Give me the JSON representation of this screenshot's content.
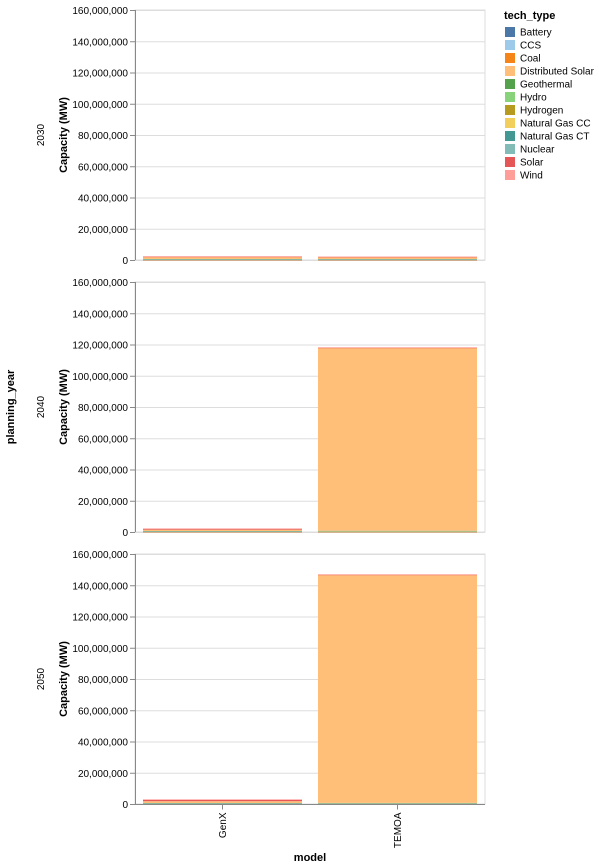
{
  "chart_data": {
    "type": "bar",
    "stacked": true,
    "facet_title": "planning_year",
    "x_title": "model",
    "y_title": "Capacity (MW)",
    "legend_title": "tech_type",
    "legend_position": "right",
    "grid": true,
    "ylim": [
      0,
      160000000
    ],
    "y_ticks": [
      "0",
      "20,000,000",
      "40,000,000",
      "60,000,000",
      "80,000,000",
      "100,000,000",
      "120,000,000",
      "140,000,000",
      "160,000,000"
    ],
    "y_tick_values": [
      0,
      20000000,
      40000000,
      60000000,
      80000000,
      100000000,
      120000000,
      140000000,
      160000000
    ],
    "categories": [
      "GenX",
      "TEMOA"
    ],
    "tech_types": [
      {
        "name": "Battery",
        "color": "#4c78a8"
      },
      {
        "name": "CCS",
        "color": "#9ecae9"
      },
      {
        "name": "Coal",
        "color": "#f58518"
      },
      {
        "name": "Distributed Solar",
        "color": "#ffbf79"
      },
      {
        "name": "Geothermal",
        "color": "#54a24b"
      },
      {
        "name": "Hydro",
        "color": "#88d27a"
      },
      {
        "name": "Hydrogen",
        "color": "#b79a20"
      },
      {
        "name": "Natural Gas CC",
        "color": "#f2cf5b"
      },
      {
        "name": "Natural Gas CT",
        "color": "#439894"
      },
      {
        "name": "Nuclear",
        "color": "#83bcb6"
      },
      {
        "name": "Solar",
        "color": "#e45756"
      },
      {
        "name": "Wind",
        "color": "#ff9d98"
      }
    ],
    "facets": [
      {
        "year": "2030",
        "bars": [
          {
            "model": "GenX",
            "segments": [
              {
                "tech": "Battery",
                "value": 50000
              },
              {
                "tech": "Coal",
                "value": 100000
              },
              {
                "tech": "Natural Gas CC",
                "value": 250000
              },
              {
                "tech": "Natural Gas CT",
                "value": 100000
              },
              {
                "tech": "Nuclear",
                "value": 100000
              },
              {
                "tech": "Distributed Solar",
                "value": 1400000
              },
              {
                "tech": "Solar",
                "value": 200000
              },
              {
                "tech": "Wind",
                "value": 200000
              }
            ]
          },
          {
            "model": "TEMOA",
            "segments": [
              {
                "tech": "Battery",
                "value": 50000
              },
              {
                "tech": "Coal",
                "value": 100000
              },
              {
                "tech": "Natural Gas CC",
                "value": 250000
              },
              {
                "tech": "Natural Gas CT",
                "value": 100000
              },
              {
                "tech": "Nuclear",
                "value": 100000
              },
              {
                "tech": "Distributed Solar",
                "value": 1300000
              },
              {
                "tech": "Solar",
                "value": 150000
              },
              {
                "tech": "Wind",
                "value": 150000
              }
            ]
          }
        ]
      },
      {
        "year": "2040",
        "bars": [
          {
            "model": "GenX",
            "segments": [
              {
                "tech": "Battery",
                "value": 100000
              },
              {
                "tech": "Coal",
                "value": 50000
              },
              {
                "tech": "Natural Gas CC",
                "value": 250000
              },
              {
                "tech": "Natural Gas CT",
                "value": 100000
              },
              {
                "tech": "Nuclear",
                "value": 100000
              },
              {
                "tech": "Distributed Solar",
                "value": 900000
              },
              {
                "tech": "Solar",
                "value": 500000
              },
              {
                "tech": "Wind",
                "value": 300000
              }
            ]
          },
          {
            "model": "TEMOA",
            "segments": [
              {
                "tech": "Battery",
                "value": 100000
              },
              {
                "tech": "Coal",
                "value": 50000
              },
              {
                "tech": "Natural Gas CC",
                "value": 250000
              },
              {
                "tech": "Natural Gas CT",
                "value": 300000
              },
              {
                "tech": "Nuclear",
                "value": 100000
              },
              {
                "tech": "Distributed Solar",
                "value": 117000000
              },
              {
                "tech": "Solar",
                "value": 200000
              },
              {
                "tech": "Wind",
                "value": 200000
              }
            ]
          }
        ]
      },
      {
        "year": "2050",
        "bars": [
          {
            "model": "GenX",
            "segments": [
              {
                "tech": "Battery",
                "value": 100000
              },
              {
                "tech": "Natural Gas CC",
                "value": 300000
              },
              {
                "tech": "Natural Gas CT",
                "value": 100000
              },
              {
                "tech": "Nuclear",
                "value": 100000
              },
              {
                "tech": "Distributed Solar",
                "value": 1200000
              },
              {
                "tech": "Solar",
                "value": 800000
              },
              {
                "tech": "Wind",
                "value": 400000
              }
            ]
          },
          {
            "model": "TEMOA",
            "segments": [
              {
                "tech": "Battery",
                "value": 100000
              },
              {
                "tech": "Natural Gas CC",
                "value": 300000
              },
              {
                "tech": "Natural Gas CT",
                "value": 200000
              },
              {
                "tech": "Nuclear",
                "value": 100000
              },
              {
                "tech": "Distributed Solar",
                "value": 145800000
              },
              {
                "tech": "Solar",
                "value": 300000
              },
              {
                "tech": "Wind",
                "value": 200000
              }
            ]
          }
        ]
      }
    ]
  }
}
